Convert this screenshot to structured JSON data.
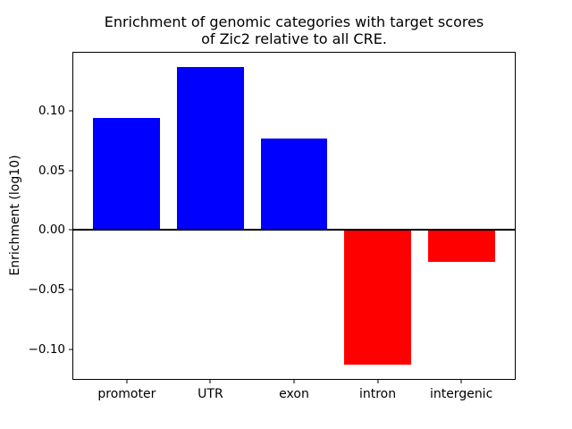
{
  "chart_data": {
    "type": "bar",
    "title": "Enrichment of genomic categories with target scores\nof Zic2 relative to all CRE.",
    "xlabel": "",
    "ylabel": "Enrichment (log10)",
    "categories": [
      "promoter",
      "UTR",
      "exon",
      "intron",
      "intergenic"
    ],
    "values": [
      0.094,
      0.137,
      0.077,
      -0.113,
      -0.027
    ],
    "positive_color": "#0000ff",
    "negative_color": "#ff0000",
    "yticks": [
      0.1,
      0.05,
      0.0,
      -0.05,
      -0.1
    ],
    "ytick_labels": [
      "0.10",
      "0.05",
      "0.00",
      "−0.05",
      "−0.10"
    ],
    "ylim": [
      -0.125,
      0.149
    ],
    "bar_width_fraction": 0.8,
    "zero_line": true,
    "grid": false,
    "legend_position": "none",
    "background_color": "#ffffff",
    "axis_color": "#000000"
  }
}
